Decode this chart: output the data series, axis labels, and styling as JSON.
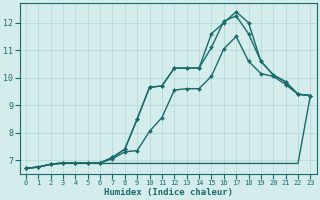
{
  "xlabel": "Humidex (Indice chaleur)",
  "bg_color": "#d4ecec",
  "line_color": "#1a6b6b",
  "grid_color": "#b8d8d8",
  "xlim": [
    -0.5,
    23.5
  ],
  "ylim": [
    6.5,
    12.7
  ],
  "xticks": [
    0,
    1,
    2,
    3,
    4,
    5,
    6,
    7,
    8,
    9,
    10,
    11,
    12,
    13,
    14,
    15,
    16,
    17,
    18,
    19,
    20,
    21,
    22,
    23
  ],
  "yticks": [
    7,
    8,
    9,
    10,
    11,
    12
  ],
  "lines": [
    {
      "x": [
        0,
        1,
        2,
        3,
        4,
        5,
        6,
        7,
        8,
        9,
        10,
        11,
        12,
        13,
        14,
        15,
        16,
        17,
        18,
        19,
        20,
        21,
        22,
        23
      ],
      "y": [
        6.7,
        6.75,
        6.85,
        6.88,
        6.88,
        6.88,
        6.88,
        6.88,
        6.88,
        6.88,
        6.88,
        6.88,
        6.88,
        6.88,
        6.88,
        6.88,
        6.88,
        6.88,
        6.88,
        6.88,
        6.88,
        6.88,
        6.88,
        9.35
      ],
      "marker": false,
      "lw": 1.0
    },
    {
      "x": [
        0,
        1,
        2,
        3,
        4,
        5,
        6,
        7,
        8,
        9,
        10,
        11,
        12,
        13,
        14,
        15,
        16,
        17,
        18,
        19,
        20,
        21,
        22,
        23
      ],
      "y": [
        6.7,
        6.75,
        6.85,
        6.9,
        6.9,
        6.9,
        6.9,
        7.05,
        7.3,
        7.35,
        8.05,
        8.55,
        9.55,
        9.6,
        9.6,
        10.05,
        11.05,
        11.5,
        10.6,
        10.15,
        10.05,
        9.75,
        9.4,
        9.35
      ],
      "marker": true,
      "lw": 1.0
    },
    {
      "x": [
        0,
        1,
        2,
        3,
        4,
        5,
        6,
        7,
        8,
        9,
        10,
        11,
        12,
        13,
        14,
        15,
        16,
        17,
        18,
        19,
        20,
        21,
        22,
        23
      ],
      "y": [
        6.7,
        6.75,
        6.85,
        6.9,
        6.9,
        6.9,
        6.9,
        7.1,
        7.4,
        8.5,
        9.65,
        9.7,
        10.35,
        10.35,
        10.35,
        11.1,
        12.05,
        12.25,
        11.6,
        10.6,
        10.1,
        9.85,
        9.4,
        9.35
      ],
      "marker": true,
      "lw": 1.0
    },
    {
      "x": [
        0,
        1,
        2,
        3,
        4,
        5,
        6,
        7,
        8,
        9,
        10,
        11,
        12,
        13,
        14,
        15,
        16,
        17,
        18,
        19,
        20,
        21,
        22,
        23
      ],
      "y": [
        6.7,
        6.75,
        6.85,
        6.9,
        6.9,
        6.9,
        6.9,
        7.1,
        7.4,
        8.5,
        9.65,
        9.7,
        10.35,
        10.35,
        10.35,
        11.6,
        12.0,
        12.4,
        12.0,
        10.6,
        10.1,
        9.85,
        9.4,
        9.35
      ],
      "marker": true,
      "lw": 1.0
    }
  ]
}
